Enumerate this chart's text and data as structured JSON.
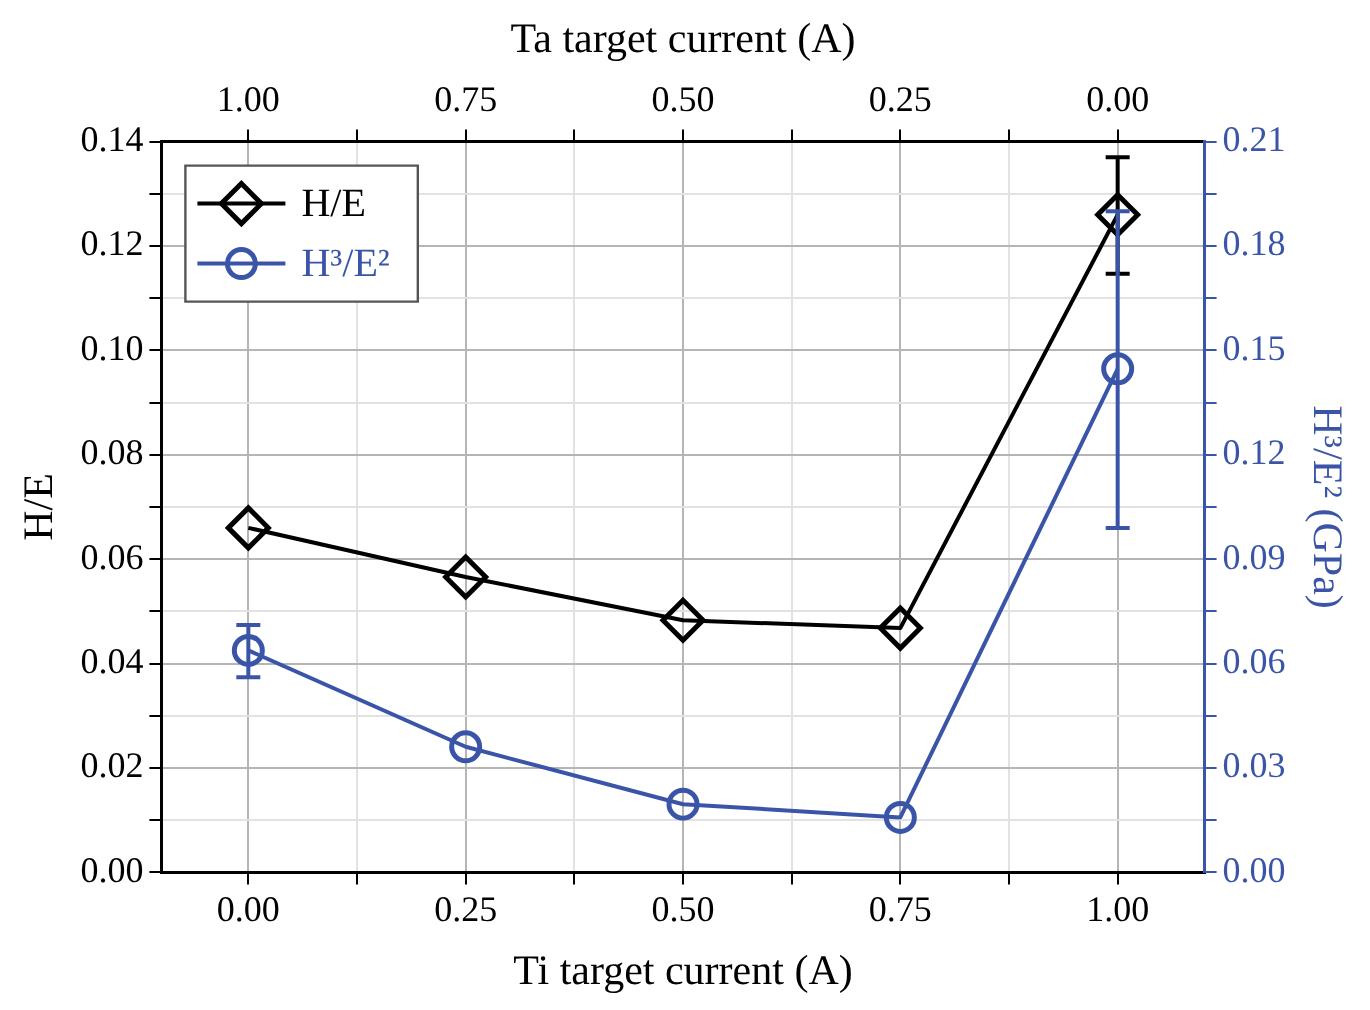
{
  "chart_data": {
    "type": "line",
    "xlabel": "Ti target current (A)",
    "x2label": "Ta target current (A)",
    "ylabel": "H/E",
    "y2label": "H³/E² (GPa)",
    "x": [
      0,
      0.25,
      0.5,
      0.75,
      1
    ],
    "series": [
      {
        "name": "H/E",
        "color": "#000000",
        "marker": "diamond",
        "values": [
          0.066,
          0.0566,
          0.0483,
          0.0468,
          0.126
        ],
        "errors": [
          null,
          null,
          null,
          null,
          [
            0.1147,
            0.137
          ]
        ]
      },
      {
        "name": "H³/E²",
        "color": "#3a55a8",
        "marker": "circle",
        "axis": "y2",
        "values": [
          0.0638,
          0.0361,
          0.0196,
          0.0158,
          0.1447
        ],
        "errors": [
          [
            0.0561,
            0.0711
          ],
          null,
          null,
          null,
          [
            0.099,
            0.19
          ]
        ]
      }
    ],
    "xlim": [
      -0.1,
      1.1
    ],
    "xticks": [
      {
        "value": 0,
        "label": "0.00"
      },
      {
        "value": 0.125,
        "label": null
      },
      {
        "value": 0.25,
        "label": "0.25"
      },
      {
        "value": 0.375,
        "label": null
      },
      {
        "value": 0.5,
        "label": "0.50"
      },
      {
        "value": 0.625,
        "label": null
      },
      {
        "value": 0.75,
        "label": "0.75"
      },
      {
        "value": 0.875,
        "label": null
      },
      {
        "value": 1,
        "label": "1.00"
      }
    ],
    "x2lim": [
      1.1,
      -0.1
    ],
    "x2ticks": [
      {
        "value": 1,
        "label": "1.00"
      },
      {
        "value": 0.875,
        "label": null
      },
      {
        "value": 0.75,
        "label": "0.75"
      },
      {
        "value": 0.625,
        "label": null
      },
      {
        "value": 0.5,
        "label": "0.50"
      },
      {
        "value": 0.375,
        "label": null
      },
      {
        "value": 0.25,
        "label": "0.25"
      },
      {
        "value": 0.125,
        "label": null
      },
      {
        "value": 0,
        "label": "0.00"
      }
    ],
    "ylim": [
      0,
      0.14
    ],
    "yticks": [
      {
        "value": 0,
        "label": "0.00"
      },
      {
        "value": 0.01,
        "label": null
      },
      {
        "value": 0.02,
        "label": "0.02"
      },
      {
        "value": 0.03,
        "label": null
      },
      {
        "value": 0.04,
        "label": "0.04"
      },
      {
        "value": 0.05,
        "label": null
      },
      {
        "value": 0.06,
        "label": "0.06"
      },
      {
        "value": 0.07,
        "label": null
      },
      {
        "value": 0.08,
        "label": "0.08"
      },
      {
        "value": 0.09,
        "label": null
      },
      {
        "value": 0.1,
        "label": "0.10"
      },
      {
        "value": 0.11,
        "label": null
      },
      {
        "value": 0.12,
        "label": "0.12"
      },
      {
        "value": 0.13,
        "label": null
      },
      {
        "value": 0.14,
        "label": "0.14"
      }
    ],
    "y2lim": [
      0,
      0.21
    ],
    "y2ticks": [
      {
        "value": 0,
        "label": "0.00"
      },
      {
        "value": 0.015,
        "label": null
      },
      {
        "value": 0.03,
        "label": "0.03"
      },
      {
        "value": 0.045,
        "label": null
      },
      {
        "value": 0.06,
        "label": "0.06"
      },
      {
        "value": 0.075,
        "label": null
      },
      {
        "value": 0.09,
        "label": "0.09"
      },
      {
        "value": 0.105,
        "label": null
      },
      {
        "value": 0.12,
        "label": "0.12"
      },
      {
        "value": 0.135,
        "label": null
      },
      {
        "value": 0.15,
        "label": "0.15"
      },
      {
        "value": 0.165,
        "label": null
      },
      {
        "value": 0.18,
        "label": "0.18"
      },
      {
        "value": 0.195,
        "label": null
      },
      {
        "value": 0.21,
        "label": "0.21"
      }
    ],
    "grid": true,
    "legend": "top left",
    "line_style": "solid"
  }
}
